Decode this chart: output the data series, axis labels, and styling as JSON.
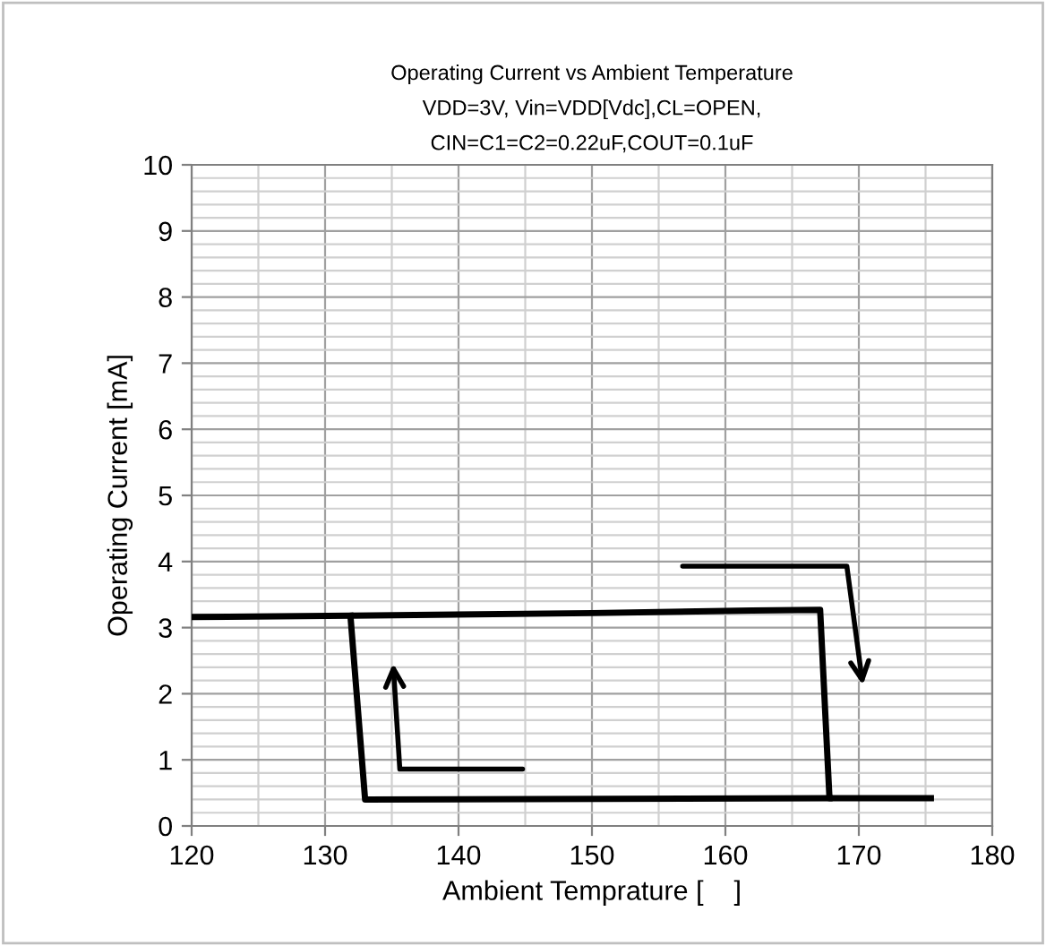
{
  "chart_data": {
    "type": "line",
    "title": "Operating Current vs Ambient Temperature\nVDD=3V, Vin=VDD[Vdc],CL=OPEN,\nCIN=C1=C2=0.22uF,COUT=0.1uF",
    "xlabel": "Ambient Temprature [    ]",
    "ylabel": "Operating Current [mA]",
    "series": [
      {
        "color": "#000000",
        "x": [
          120,
          132,
          150,
          162,
          167.1,
          167.8,
          175.4
        ],
        "values": [
          3.16,
          3.18,
          3.22,
          3.26,
          3.27,
          0.42,
          0.42
        ]
      },
      {
        "color": "#000000",
        "x": [
          131.9,
          133,
          167.8
        ],
        "values": [
          3.18,
          0.4,
          0.42
        ]
      }
    ],
    "xlim": [
      120,
      180
    ],
    "xticks": [
      120,
      130,
      140,
      150,
      160,
      170,
      180
    ],
    "ylim": [
      0,
      10
    ],
    "yticks": [
      0,
      1,
      2,
      3,
      4,
      5,
      6,
      7,
      8,
      9,
      10
    ],
    "grid": true,
    "marker": "none",
    "line_style": "solid",
    "legend": false
  }
}
